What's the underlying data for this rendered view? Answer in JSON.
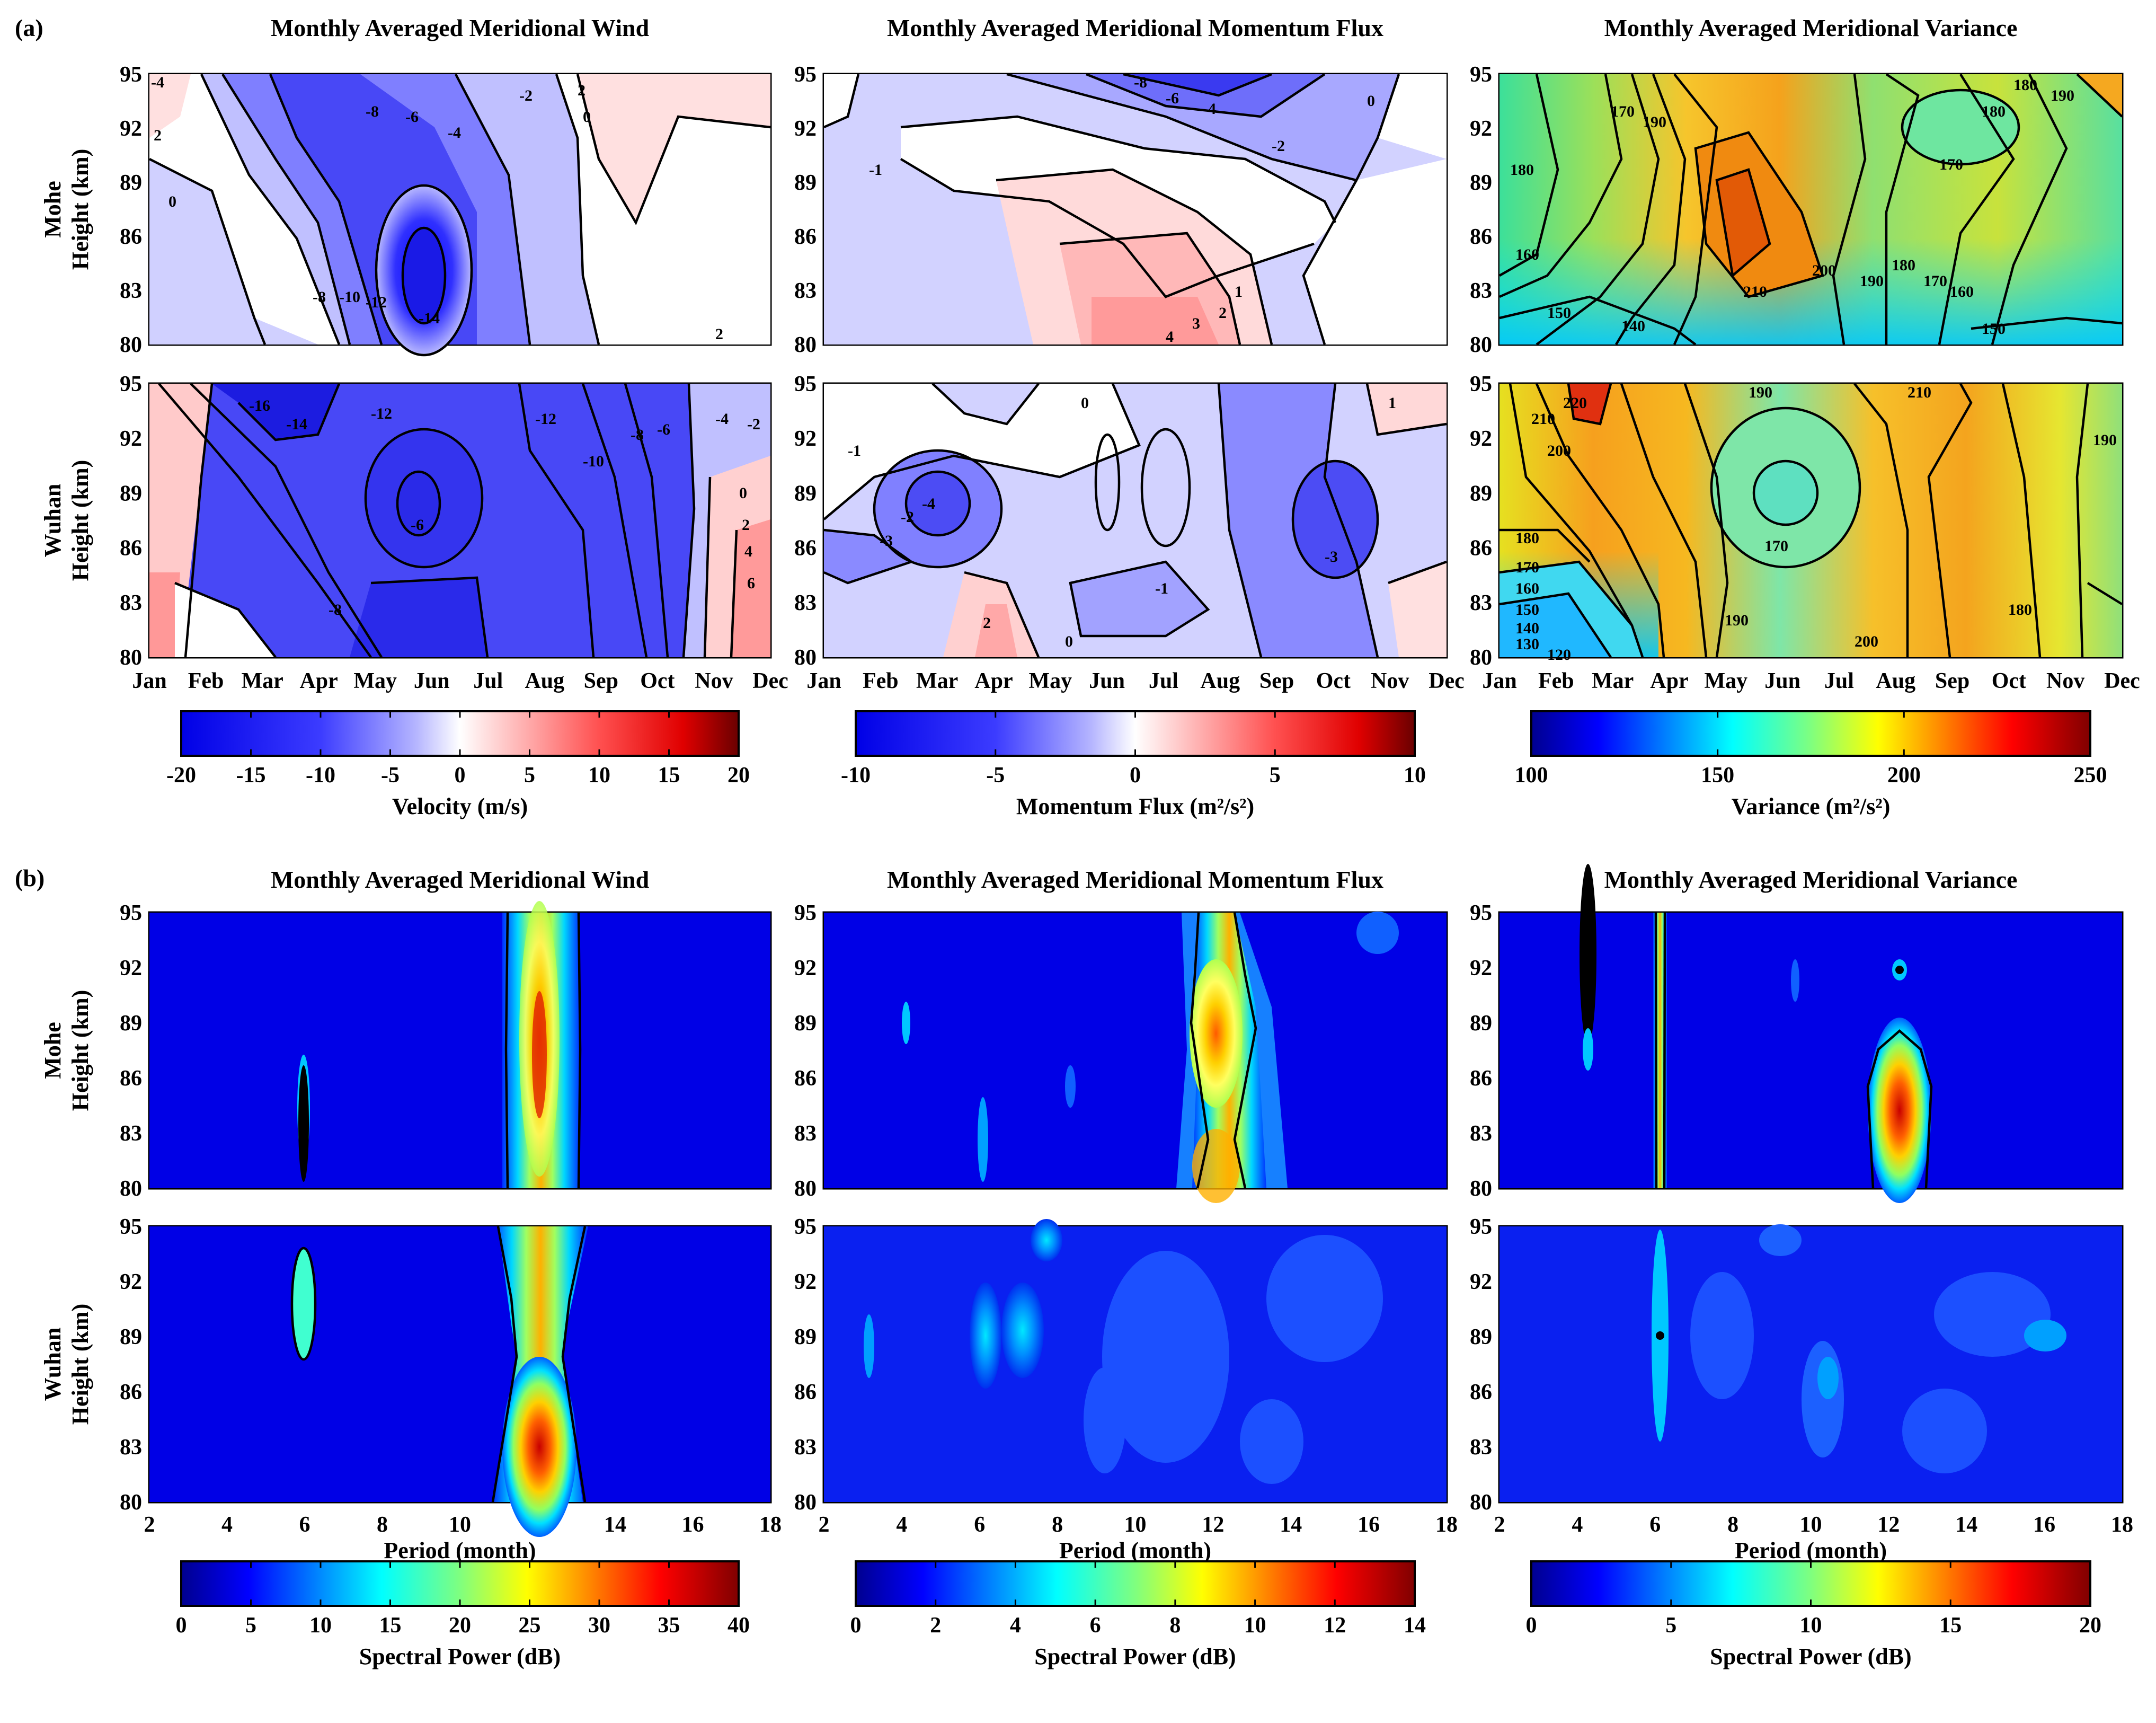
{
  "panel_a_label": "(a)",
  "panel_b_label": "(b)",
  "colors": {
    "blue_white_red": [
      "#0a0adc",
      "#ffffff",
      "#d20000",
      "#6e0000"
    ],
    "jet": [
      "#00008f",
      "#0000ff",
      "#00ffff",
      "#ffff00",
      "#ff0000",
      "#800000"
    ]
  },
  "chart_data": [
    {
      "id": "a-wind",
      "type": "heatmap",
      "title": "Monthly Averaged Meridional Wind",
      "xlabel": "",
      "x": [
        "Jan",
        "Feb",
        "Mar",
        "Apr",
        "May",
        "Jun",
        "Jul",
        "Aug",
        "Sep",
        "Oct",
        "Nov",
        "Dec"
      ],
      "y": [
        80,
        95
      ],
      "yticks": [
        80,
        83,
        86,
        89,
        92,
        95
      ],
      "rows": [
        "Mohe",
        "Wuhan"
      ],
      "ylabel": "Height (km)",
      "colorbar": {
        "label": "Velocity (m/s)",
        "range": [
          -20,
          20
        ],
        "ticks": [
          -20,
          -15,
          -10,
          -5,
          0,
          5,
          10,
          15,
          20
        ],
        "colormap": "blue-white-red"
      },
      "contour_labels": {
        "Mohe": [
          "-4",
          "2",
          "0",
          "-8",
          "-6",
          "-4",
          "-2",
          "0",
          "2",
          "-12",
          "-10",
          "-8",
          "-14",
          "2"
        ],
        "Wuhan": [
          "-16",
          "-14",
          "-12",
          "-12",
          "-10",
          "-8",
          "-6",
          "-4",
          "-2",
          "0",
          "2",
          "4",
          "6",
          "-8",
          "-6"
        ]
      }
    },
    {
      "id": "a-flux",
      "type": "heatmap",
      "title": "Monthly Averaged Meridional Momentum Flux",
      "x": [
        "Jan",
        "Feb",
        "Mar",
        "Apr",
        "May",
        "Jun",
        "Jul",
        "Aug",
        "Sep",
        "Oct",
        "Nov",
        "Dec"
      ],
      "y": [
        80,
        95
      ],
      "yticks": [
        80,
        83,
        86,
        89,
        92,
        95
      ],
      "rows": [
        "Mohe",
        "Wuhan"
      ],
      "ylabel": "Height (km)",
      "colorbar": {
        "label": "Momentum Flux (m²/s²)",
        "range": [
          -10,
          10
        ],
        "ticks": [
          -10,
          -5,
          0,
          5,
          10
        ],
        "colormap": "blue-white-red"
      },
      "contour_labels": {
        "Mohe": [
          "-8",
          "-6",
          "-4",
          "-2",
          "-1",
          "0",
          "1",
          "2",
          "3",
          "4"
        ],
        "Wuhan": [
          "-4",
          "-3",
          "-2",
          "-1",
          "0",
          "1",
          "2",
          "-1",
          "0",
          "-3"
        ]
      }
    },
    {
      "id": "a-var",
      "type": "heatmap",
      "title": "Monthly Averaged Meridional Variance",
      "x": [
        "Jan",
        "Feb",
        "Mar",
        "Apr",
        "May",
        "Jun",
        "Jul",
        "Aug",
        "Sep",
        "Oct",
        "Nov",
        "Dec"
      ],
      "y": [
        80,
        95
      ],
      "yticks": [
        80,
        83,
        86,
        89,
        92,
        95
      ],
      "rows": [
        "Mohe",
        "Wuhan"
      ],
      "ylabel": "Height (km)",
      "colorbar": {
        "label": "Variance (m²/s²)",
        "range": [
          100,
          250
        ],
        "ticks": [
          100,
          150,
          200,
          250
        ],
        "colormap": "jet"
      },
      "contour_labels": {
        "Mohe": [
          "180",
          "170",
          "190",
          "180",
          "170",
          "160",
          "150",
          "140",
          "210",
          "200",
          "190",
          "180",
          "170",
          "160",
          "150",
          "190",
          "180"
        ],
        "Wuhan": [
          "220",
          "210",
          "200",
          "190",
          "180",
          "170",
          "160",
          "150",
          "140",
          "130",
          "120",
          "190",
          "200",
          "210",
          "170",
          "180",
          "190"
        ]
      }
    },
    {
      "id": "b-wind",
      "type": "heatmap",
      "title": "Monthly Averaged Meridional Wind",
      "xlabel": "Period (month)",
      "x": [
        2,
        18
      ],
      "xticks": [
        2,
        4,
        6,
        8,
        10,
        12,
        14,
        16,
        18
      ],
      "yticks": [
        80,
        83,
        86,
        89,
        92,
        95
      ],
      "rows": [
        "Mohe",
        "Wuhan"
      ],
      "ylabel": "Height (km)",
      "colorbar": {
        "label": "Spectral Power (dB)",
        "range": [
          0,
          40
        ],
        "ticks": [
          0,
          5,
          10,
          15,
          20,
          25,
          30,
          35,
          40
        ],
        "colormap": "jet"
      }
    },
    {
      "id": "b-flux",
      "type": "heatmap",
      "title": "Monthly Averaged Meridional Momentum Flux",
      "xlabel": "Period (month)",
      "x": [
        2,
        18
      ],
      "xticks": [
        2,
        4,
        6,
        8,
        10,
        12,
        14,
        16,
        18
      ],
      "yticks": [
        80,
        83,
        86,
        89,
        92,
        95
      ],
      "rows": [
        "Mohe",
        "Wuhan"
      ],
      "ylabel": "Height (km)",
      "colorbar": {
        "label": "Spectral Power (dB)",
        "range": [
          0,
          14
        ],
        "ticks": [
          0,
          2,
          4,
          6,
          8,
          10,
          12,
          14
        ],
        "colormap": "jet"
      }
    },
    {
      "id": "b-var",
      "type": "heatmap",
      "title": "Monthly Averaged Meridional Variance",
      "xlabel": "Period (month)",
      "x": [
        2,
        18
      ],
      "xticks": [
        2,
        4,
        6,
        8,
        10,
        12,
        14,
        16,
        18
      ],
      "yticks": [
        80,
        83,
        86,
        89,
        92,
        95
      ],
      "rows": [
        "Mohe",
        "Wuhan"
      ],
      "ylabel": "Height (km)",
      "colorbar": {
        "label": "Spectral Power (dB)",
        "range": [
          0,
          20
        ],
        "ticks": [
          0,
          5,
          10,
          15,
          20
        ],
        "colormap": "jet"
      }
    }
  ]
}
